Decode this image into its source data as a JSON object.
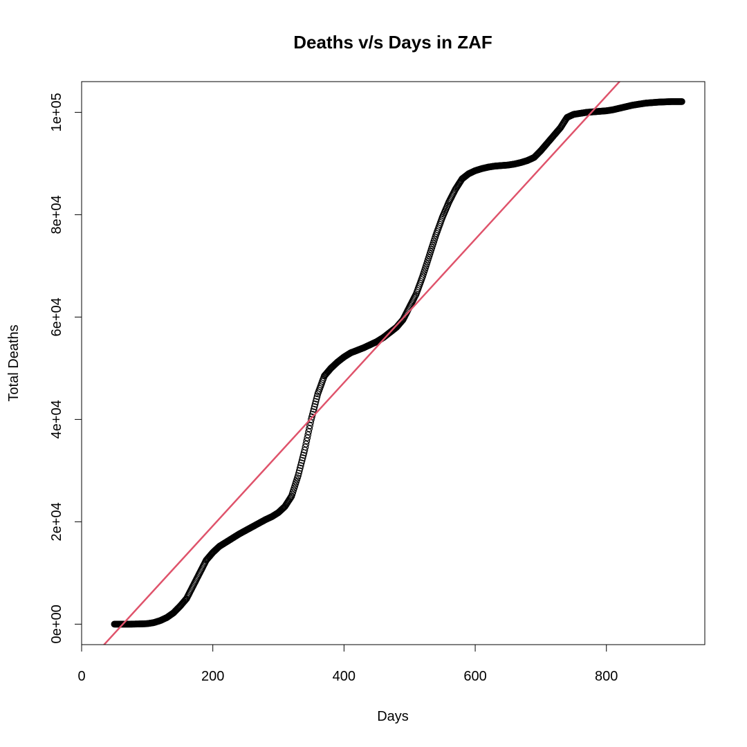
{
  "chart_data": {
    "type": "scatter",
    "title": "Deaths v/s Days in ZAF",
    "xlabel": "Days",
    "ylabel": "Total Deaths",
    "xlim": [
      0,
      950
    ],
    "ylim": [
      -4000,
      106000
    ],
    "x_ticks": [
      0,
      200,
      400,
      600,
      800
    ],
    "x_tick_labels": [
      "0",
      "200",
      "400",
      "600",
      "800"
    ],
    "y_ticks": [
      0,
      20000,
      40000,
      60000,
      80000,
      100000
    ],
    "y_tick_labels": [
      "0e+00",
      "2e+04",
      "4e+04",
      "6e+04",
      "8e+04",
      "1e+05"
    ],
    "grid": false,
    "legend": "none",
    "colors": {
      "points": "#000000",
      "fit_line": "#DF536B"
    },
    "series": [
      {
        "kind": "points",
        "x": [
          50,
          60,
          70,
          80,
          90,
          100,
          110,
          120,
          130,
          140,
          150,
          160,
          170,
          180,
          190,
          200,
          210,
          220,
          230,
          240,
          250,
          260,
          270,
          280,
          290,
          300,
          310,
          320,
          330,
          340,
          350,
          360,
          370,
          380,
          390,
          400,
          410,
          420,
          430,
          440,
          450,
          460,
          470,
          480,
          490,
          500,
          510,
          520,
          530,
          540,
          550,
          560,
          570,
          580,
          590,
          600,
          610,
          620,
          630,
          640,
          650,
          660,
          670,
          680,
          690,
          700,
          710,
          720,
          730,
          740,
          750,
          760,
          770,
          780,
          790,
          800,
          810,
          820,
          830,
          840,
          850,
          860,
          870,
          880,
          890,
          900,
          910,
          915
        ],
        "y": [
          0,
          0,
          0,
          20,
          50,
          100,
          300,
          700,
          1300,
          2200,
          3500,
          5000,
          7500,
          10000,
          12500,
          14000,
          15200,
          16000,
          16800,
          17600,
          18300,
          19000,
          19700,
          20400,
          21000,
          21800,
          23000,
          25000,
          29000,
          34000,
          40000,
          45000,
          48500,
          50000,
          51200,
          52200,
          53000,
          53500,
          54000,
          54600,
          55200,
          56000,
          57000,
          58000,
          59500,
          62000,
          64500,
          68000,
          72000,
          76000,
          79500,
          82500,
          85000,
          87000,
          88000,
          88600,
          89000,
          89300,
          89500,
          89600,
          89700,
          89900,
          90200,
          90600,
          91200,
          92500,
          94000,
          95500,
          97000,
          99000,
          99600,
          99800,
          100000,
          100100,
          100200,
          100300,
          100500,
          100800,
          101100,
          101400,
          101600,
          101800,
          101900,
          102000,
          102050,
          102100,
          102100,
          102100
        ]
      },
      {
        "kind": "regression-line",
        "intercept": -8800,
        "slope": 140
      }
    ]
  }
}
